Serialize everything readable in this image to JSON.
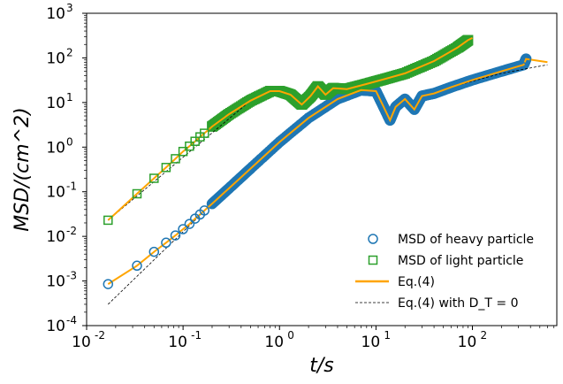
{
  "chart_data": {
    "type": "scatter",
    "title": "",
    "xlabel": "t/s",
    "ylabel": "MSD/(cm^2)",
    "xscale": "log",
    "yscale": "log",
    "xlim": [
      0.01,
      750
    ],
    "ylim": [
      0.0001,
      1000
    ],
    "x_ticks": [
      {
        "base": "10",
        "exp": "-2",
        "value": 0.01
      },
      {
        "base": "10",
        "exp": "-1",
        "value": 0.1
      },
      {
        "base": "10",
        "exp": "0",
        "value": 1
      },
      {
        "base": "10",
        "exp": "1",
        "value": 10
      },
      {
        "base": "10",
        "exp": "2",
        "value": 100
      }
    ],
    "y_ticks": [
      {
        "base": "10",
        "exp": "-4",
        "value": 0.0001
      },
      {
        "base": "10",
        "exp": "-3",
        "value": 0.001
      },
      {
        "base": "10",
        "exp": "-2",
        "value": 0.01
      },
      {
        "base": "10",
        "exp": "-1",
        "value": 0.1
      },
      {
        "base": "10",
        "exp": "0",
        "value": 1
      },
      {
        "base": "10",
        "exp": "1",
        "value": 10
      },
      {
        "base": "10",
        "exp": "2",
        "value": 100
      },
      {
        "base": "10",
        "exp": "3",
        "value": 1000
      }
    ],
    "legend_position": "lower-right",
    "grid": false,
    "series": [
      {
        "name": "MSD of heavy particle",
        "marker": "circle",
        "color": "#1f77b4",
        "points": [
          [
            0.0167,
            0.00085
          ],
          [
            0.0333,
            0.0022
          ],
          [
            0.05,
            0.0045
          ],
          [
            0.0667,
            0.0072
          ],
          [
            0.0833,
            0.0105
          ],
          [
            0.1,
            0.0145
          ],
          [
            0.1167,
            0.019
          ],
          [
            0.1333,
            0.025
          ],
          [
            0.15,
            0.031
          ],
          [
            0.1667,
            0.038
          ],
          [
            0.2,
            0.054
          ],
          [
            0.3,
            0.12
          ],
          [
            0.5,
            0.33
          ],
          [
            1.0,
            1.3
          ],
          [
            2.0,
            4.5
          ],
          [
            4.0,
            12
          ],
          [
            7.0,
            19
          ],
          [
            10.0,
            18
          ],
          [
            12.0,
            8
          ],
          [
            14.0,
            4
          ],
          [
            16.0,
            8
          ],
          [
            20.0,
            12
          ],
          [
            25.0,
            7
          ],
          [
            30.0,
            14
          ],
          [
            40.0,
            16
          ],
          [
            60.0,
            22
          ],
          [
            100.0,
            32
          ],
          [
            200.0,
            50
          ],
          [
            340.0,
            70
          ],
          [
            360.0,
            95
          ]
        ]
      },
      {
        "name": "MSD of light particle",
        "marker": "square",
        "color": "#2ca02c",
        "points": [
          [
            0.0167,
            0.023
          ],
          [
            0.0333,
            0.09
          ],
          [
            0.05,
            0.2
          ],
          [
            0.0667,
            0.35
          ],
          [
            0.0833,
            0.55
          ],
          [
            0.1,
            0.8
          ],
          [
            0.1167,
            1.05
          ],
          [
            0.1333,
            1.35
          ],
          [
            0.15,
            1.7
          ],
          [
            0.1667,
            2.05
          ],
          [
            0.2,
            2.9
          ],
          [
            0.3,
            5.5
          ],
          [
            0.5,
            11
          ],
          [
            0.8,
            18
          ],
          [
            1.0,
            18
          ],
          [
            1.3,
            15
          ],
          [
            1.7,
            9
          ],
          [
            2.1,
            14
          ],
          [
            2.5,
            23
          ],
          [
            3.0,
            15
          ],
          [
            3.6,
            21
          ],
          [
            5.0,
            20
          ],
          [
            8.0,
            26
          ],
          [
            12.0,
            33
          ],
          [
            20.0,
            45
          ],
          [
            40.0,
            85
          ],
          [
            70.0,
            170
          ],
          [
            90.0,
            250
          ]
        ]
      },
      {
        "name": "Eq.(4)",
        "style": "solid-line",
        "color": "#ffa500"
      },
      {
        "name": "Eq.(4) with D_T = 0",
        "style": "dashed-line",
        "color": "#000000"
      }
    ]
  }
}
